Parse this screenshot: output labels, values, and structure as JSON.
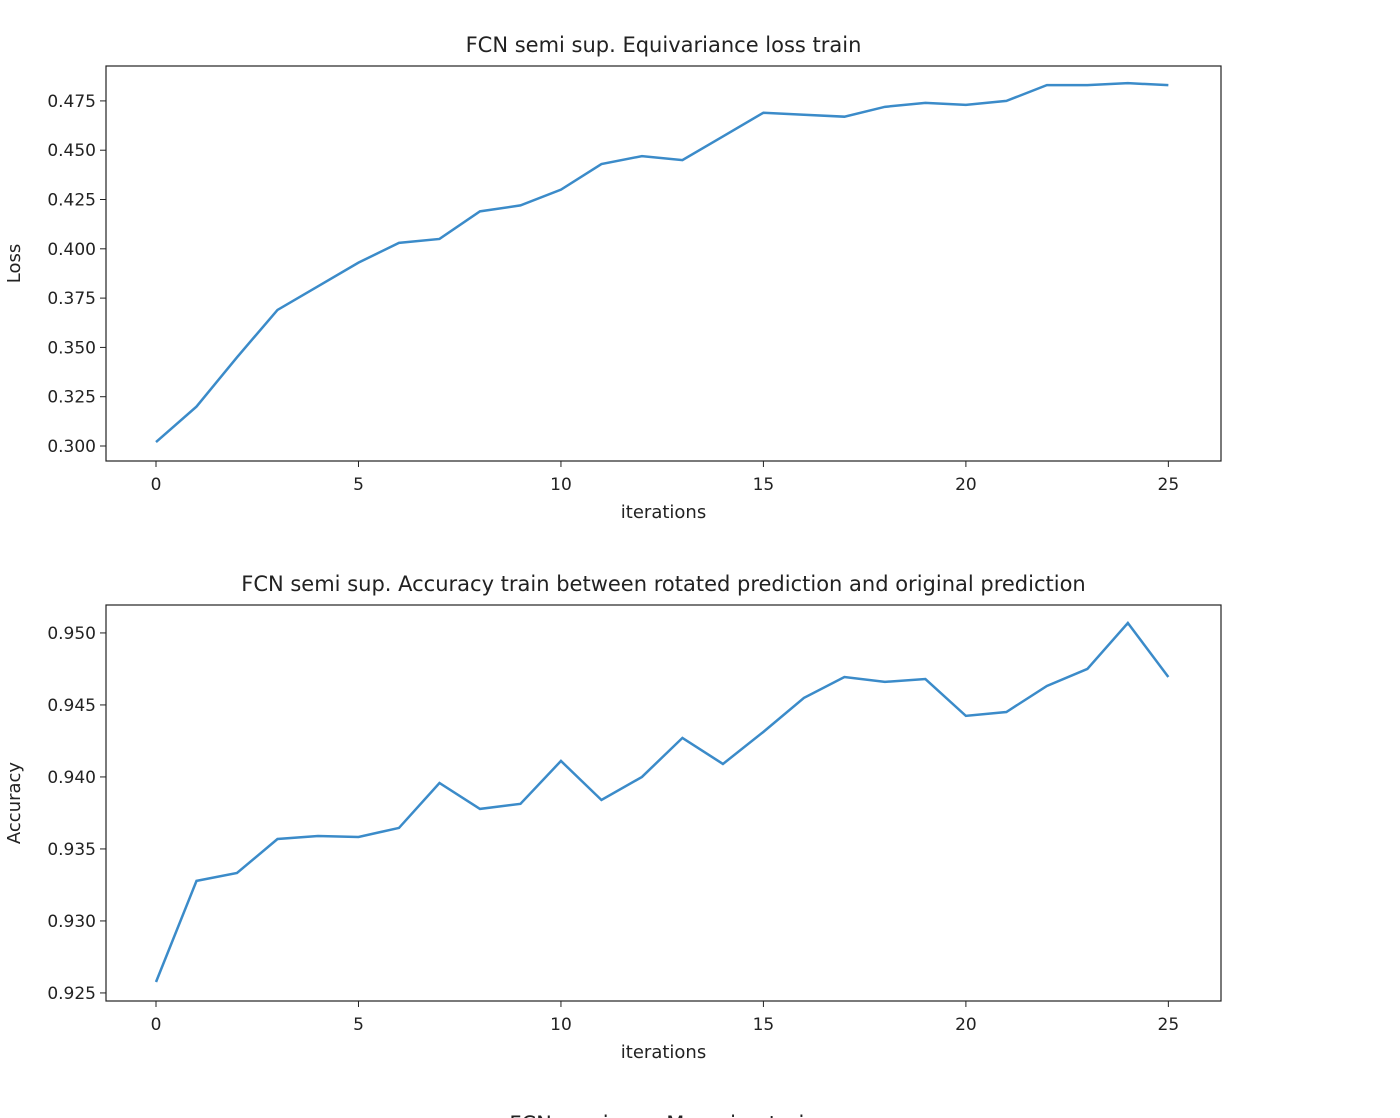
{
  "chart_data": [
    {
      "type": "line",
      "title": "FCN semi sup. Equivariance loss train",
      "x_label": "iterations",
      "y_label": "Loss",
      "x": [
        0,
        1,
        2,
        3,
        4,
        5,
        6,
        7,
        8,
        9,
        10,
        11,
        12,
        13,
        14,
        15,
        16,
        17,
        18,
        19,
        20,
        21,
        22,
        23,
        24,
        25
      ],
      "series": [
        {
          "color": "#3b8bc9",
          "values": [
            0.302,
            0.32,
            0.345,
            0.369,
            0.381,
            0.393,
            0.403,
            0.405,
            0.419,
            0.422,
            0.43,
            0.443,
            0.447,
            0.445,
            0.457,
            0.469,
            0.468,
            0.467,
            0.472,
            0.474,
            0.473,
            0.475,
            0.483,
            0.483,
            0.484,
            0.483
          ]
        }
      ],
      "xlim": [
        -1.235,
        26.3
      ],
      "ylim": [
        0.2924,
        0.4927
      ],
      "xticks": [
        0,
        5,
        10,
        15,
        20,
        25
      ],
      "yticks": [
        {
          "value": 0.3,
          "label": "0.300"
        },
        {
          "value": 0.325,
          "label": "0.325"
        },
        {
          "value": 0.35,
          "label": "0.350"
        },
        {
          "value": 0.375,
          "label": "0.375"
        },
        {
          "value": 0.4,
          "label": "0.400"
        },
        {
          "value": 0.425,
          "label": "0.425"
        },
        {
          "value": 0.45,
          "label": "0.450"
        },
        {
          "value": 0.475,
          "label": "0.475"
        }
      ]
    },
    {
      "type": "line",
      "title": "FCN semi sup. Accuracy train between rotated prediction and original prediction",
      "x_label": "iterations",
      "y_label": "Accuracy",
      "x": [
        0,
        1,
        2,
        3,
        4,
        5,
        6,
        7,
        8,
        9,
        10,
        11,
        12,
        13,
        14,
        15,
        16,
        17,
        18,
        19,
        20,
        21,
        22,
        23,
        24,
        25
      ],
      "series": [
        {
          "color": "#3b8bc9",
          "values": [
            0.92576,
            0.93278,
            0.93333,
            0.93569,
            0.9359,
            0.93583,
            0.93646,
            0.93958,
            0.93778,
            0.93813,
            0.94111,
            0.9384,
            0.94,
            0.94271,
            0.9409,
            0.94313,
            0.94549,
            0.94694,
            0.9466,
            0.9468,
            0.94424,
            0.94451,
            0.94632,
            0.9475,
            0.95069,
            0.94694
          ]
        }
      ],
      "xlim": [
        -1.235,
        26.3
      ],
      "ylim": [
        0.92444,
        0.95194
      ],
      "xticks": [
        0,
        5,
        10,
        15,
        20,
        25
      ],
      "yticks": [
        {
          "value": 0.925,
          "label": "0.925"
        },
        {
          "value": 0.93,
          "label": "0.930"
        },
        {
          "value": 0.935,
          "label": "0.935"
        },
        {
          "value": 0.94,
          "label": "0.940"
        },
        {
          "value": 0.945,
          "label": "0.945"
        },
        {
          "value": 0.95,
          "label": "0.950"
        }
      ]
    },
    {
      "type": "line",
      "title": "FCN semi sup. Mean iou train"
    }
  ]
}
